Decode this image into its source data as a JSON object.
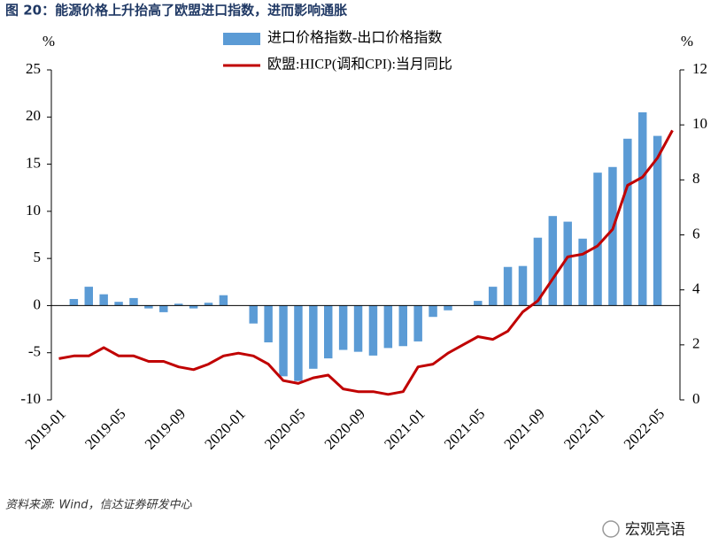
{
  "chart_data": {
    "type": "bar_line",
    "title": "图 20：能源价格上升抬高了欧盟进口指数，进而影响通胀",
    "ylabel": "%",
    "y2label": "%",
    "source": "资料来源: Wind，信达证券研发中心",
    "watermark": "宏观亮语",
    "categories": [
      "2019-01",
      null,
      null,
      null,
      "2019-05",
      null,
      null,
      null,
      "2019-09",
      null,
      null,
      null,
      "2020-01",
      null,
      null,
      null,
      "2020-05",
      null,
      null,
      null,
      "2020-09",
      null,
      null,
      null,
      "2021-01",
      null,
      null,
      null,
      "2021-05",
      null,
      null,
      null,
      "2021-09",
      null,
      null,
      null,
      "2022-01",
      null,
      null,
      null,
      "2022-05",
      null
    ],
    "series": [
      {
        "name": "进口价格指数-出口价格指数",
        "type": "bar",
        "axis": "y",
        "color": "#5b9bd5",
        "values": [
          null,
          0.7,
          2.0,
          1.2,
          0.4,
          0.8,
          -0.3,
          -0.7,
          0.2,
          -0.3,
          0.3,
          1.1,
          0.0,
          -1.9,
          -3.9,
          -7.5,
          -8.0,
          -6.7,
          -5.6,
          -4.7,
          -4.9,
          -5.3,
          -4.5,
          -4.3,
          -3.8,
          -1.2,
          -0.5,
          0.0,
          0.5,
          2.0,
          4.1,
          4.2,
          7.2,
          9.5,
          8.9,
          7.1,
          14.1,
          14.7,
          17.7,
          20.5,
          18.0,
          null
        ]
      },
      {
        "name": "欧盟:HICP(调和CPI):当月同比",
        "type": "line",
        "axis": "y2",
        "color": "#c00000",
        "values": [
          1.5,
          1.6,
          1.6,
          1.9,
          1.6,
          1.6,
          1.4,
          1.4,
          1.2,
          1.1,
          1.3,
          1.6,
          1.7,
          1.6,
          1.3,
          0.7,
          0.6,
          0.8,
          0.9,
          0.4,
          0.3,
          0.3,
          0.2,
          0.3,
          1.2,
          1.3,
          1.7,
          2.0,
          2.3,
          2.2,
          2.5,
          3.2,
          3.6,
          4.4,
          5.2,
          5.3,
          5.6,
          6.2,
          7.8,
          8.1,
          8.8,
          9.8
        ]
      }
    ],
    "ylim": [
      -10,
      25
    ],
    "yticks": [
      -10,
      -5,
      0,
      5,
      10,
      15,
      20,
      25
    ],
    "y2lim": [
      0,
      12
    ],
    "y2ticks": [
      0,
      2,
      4,
      6,
      8,
      10,
      12
    ],
    "legend": "top"
  }
}
